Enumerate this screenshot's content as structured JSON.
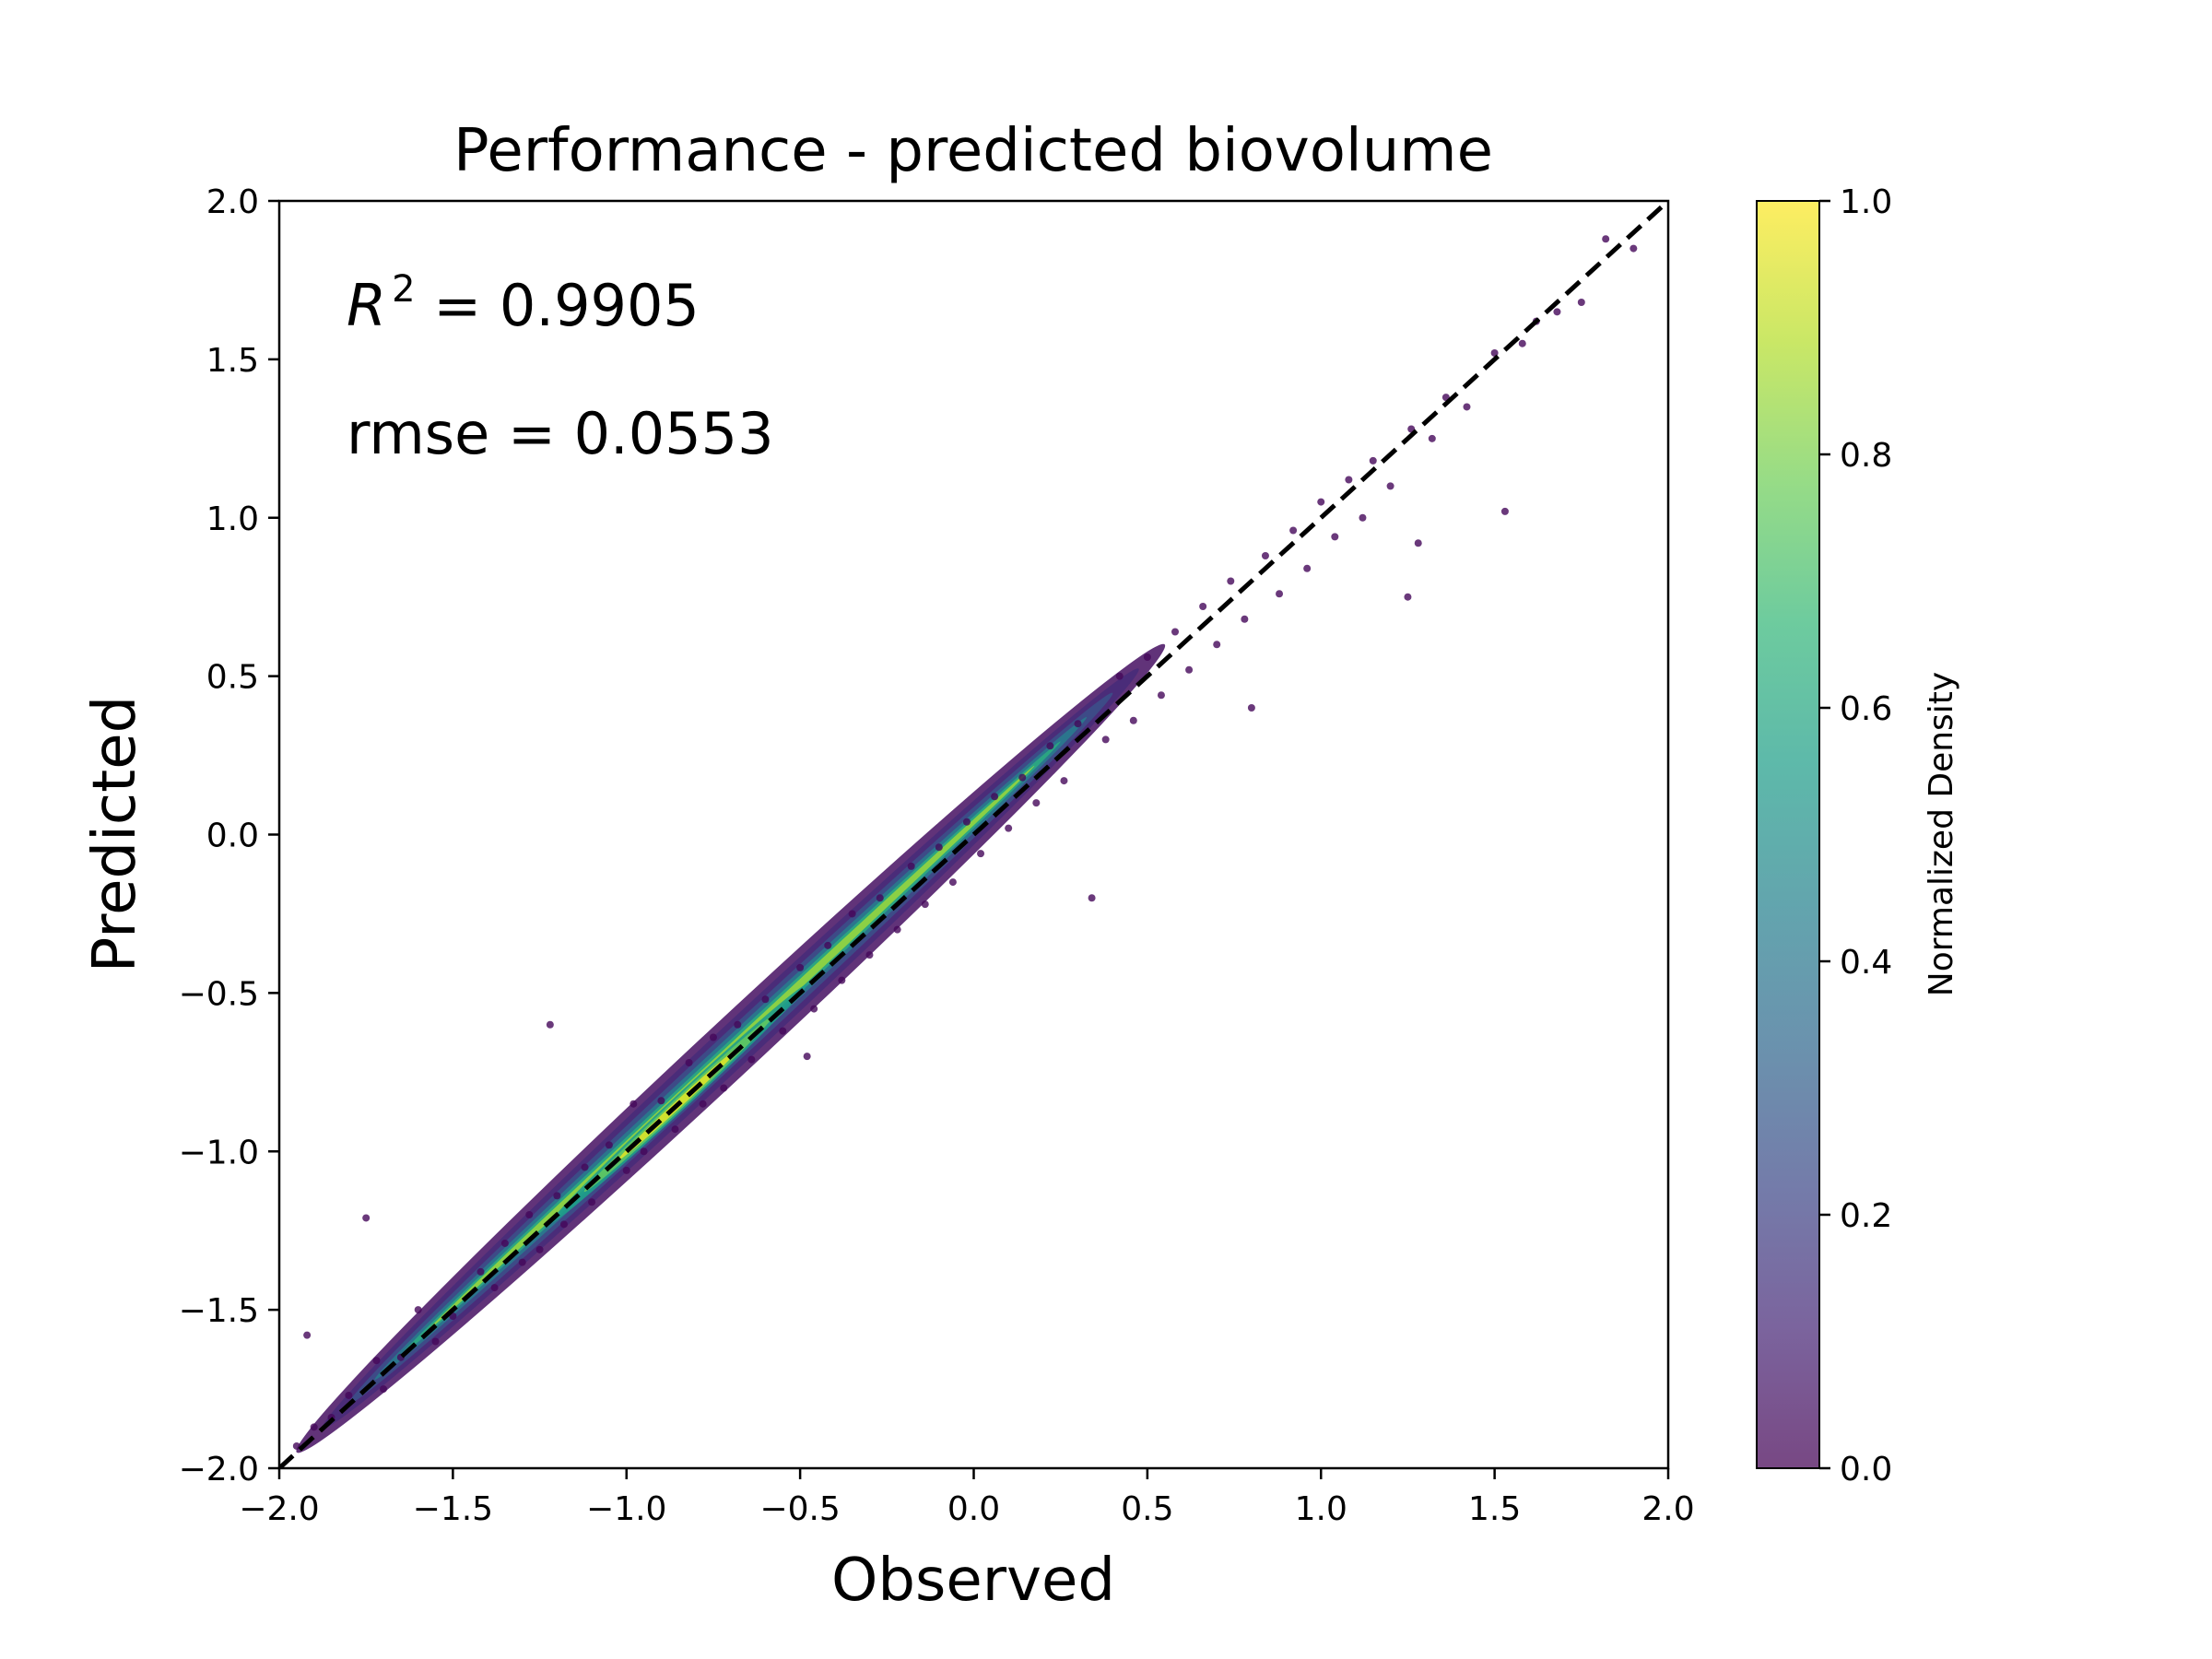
{
  "chart_data": {
    "type": "scatter",
    "title": "Performance - predicted biovolume",
    "xlabel": "Observed",
    "ylabel": "Predicted",
    "xlim": [
      -2.0,
      2.0
    ],
    "ylim": [
      -2.0,
      2.0
    ],
    "xticks": [
      "−2.0",
      "−1.5",
      "−1.0",
      "−0.5",
      "0.0",
      "0.5",
      "1.0",
      "1.5",
      "2.0"
    ],
    "yticks": [
      "−2.0",
      "−1.5",
      "−1.0",
      "−0.5",
      "0.0",
      "0.5",
      "1.0",
      "1.5",
      "2.0"
    ],
    "tick_values": [
      -2.0,
      -1.5,
      -1.0,
      -0.5,
      0.0,
      0.5,
      1.0,
      1.5,
      2.0
    ],
    "grid": false,
    "annotations": {
      "r2_symbol": "R",
      "r2_exponent": "2",
      "r2_value": " = 0.9905",
      "rmse": "rmse = 0.0553"
    },
    "reference_line": {
      "style": "dashed",
      "color": "#000000",
      "from": [
        -2.0,
        -2.0
      ],
      "to": [
        2.0,
        2.0
      ]
    },
    "colorbar": {
      "label": "Normalized Density",
      "range": [
        0.0,
        1.0
      ],
      "ticks": [
        "0.0",
        "0.2",
        "0.4",
        "0.6",
        "0.8",
        "1.0"
      ],
      "tick_values": [
        0.0,
        0.2,
        0.4,
        0.6,
        0.8,
        1.0
      ],
      "colormap": "viridis",
      "colors": [
        "#440154",
        "#482878",
        "#3e4989",
        "#31688e",
        "#26828e",
        "#1f9e89",
        "#35b779",
        "#6ece58",
        "#b5de2b",
        "#fde725"
      ]
    },
    "series": [
      {
        "points": [
          [
            -1.95,
            -1.93
          ],
          [
            -1.9,
            -1.87
          ],
          [
            -1.92,
            -1.58
          ],
          [
            -1.85,
            -1.84
          ],
          [
            -1.8,
            -1.77
          ],
          [
            -1.75,
            -1.21
          ],
          [
            -1.72,
            -1.66
          ],
          [
            -1.7,
            -1.75
          ],
          [
            -1.65,
            -1.65
          ],
          [
            -1.6,
            -1.5
          ],
          [
            -1.55,
            -1.6
          ],
          [
            -1.5,
            -1.52
          ],
          [
            -1.42,
            -1.38
          ],
          [
            -1.38,
            -1.43
          ],
          [
            -1.35,
            -1.29
          ],
          [
            -1.3,
            -1.35
          ],
          [
            -1.28,
            -1.2
          ],
          [
            -1.25,
            -1.31
          ],
          [
            -1.22,
            -0.6
          ],
          [
            -1.2,
            -1.14
          ],
          [
            -1.18,
            -1.23
          ],
          [
            -1.12,
            -1.05
          ],
          [
            -1.1,
            -1.16
          ],
          [
            -1.05,
            -0.98
          ],
          [
            -1.0,
            -1.06
          ],
          [
            -0.98,
            -0.85
          ],
          [
            -0.95,
            -1.0
          ],
          [
            -0.9,
            -0.84
          ],
          [
            -0.86,
            -0.93
          ],
          [
            -0.82,
            -0.72
          ],
          [
            -0.78,
            -0.85
          ],
          [
            -0.75,
            -0.64
          ],
          [
            -0.72,
            -0.8
          ],
          [
            -0.68,
            -0.6
          ],
          [
            -0.64,
            -0.71
          ],
          [
            -0.6,
            -0.52
          ],
          [
            -0.55,
            -0.62
          ],
          [
            -0.5,
            -0.42
          ],
          [
            -0.48,
            -0.7
          ],
          [
            -0.46,
            -0.55
          ],
          [
            -0.42,
            -0.35
          ],
          [
            -0.38,
            -0.46
          ],
          [
            -0.35,
            -0.25
          ],
          [
            -0.3,
            -0.38
          ],
          [
            -0.27,
            -0.2
          ],
          [
            -0.22,
            -0.3
          ],
          [
            -0.18,
            -0.1
          ],
          [
            -0.14,
            -0.22
          ],
          [
            -0.1,
            -0.04
          ],
          [
            -0.06,
            -0.15
          ],
          [
            -0.02,
            0.04
          ],
          [
            0.02,
            -0.06
          ],
          [
            0.06,
            0.12
          ],
          [
            0.1,
            0.02
          ],
          [
            0.14,
            0.18
          ],
          [
            0.18,
            0.1
          ],
          [
            0.22,
            0.28
          ],
          [
            0.26,
            0.17
          ],
          [
            0.3,
            0.35
          ],
          [
            0.34,
            -0.2
          ],
          [
            0.38,
            0.3
          ],
          [
            0.42,
            0.5
          ],
          [
            0.46,
            0.36
          ],
          [
            0.5,
            0.56
          ],
          [
            0.54,
            0.44
          ],
          [
            0.58,
            0.64
          ],
          [
            0.62,
            0.52
          ],
          [
            0.66,
            0.72
          ],
          [
            0.7,
            0.6
          ],
          [
            0.74,
            0.8
          ],
          [
            0.78,
            0.68
          ],
          [
            0.8,
            0.4
          ],
          [
            0.84,
            0.88
          ],
          [
            0.88,
            0.76
          ],
          [
            0.92,
            0.96
          ],
          [
            0.96,
            0.84
          ],
          [
            1.0,
            1.05
          ],
          [
            1.04,
            0.94
          ],
          [
            1.08,
            1.12
          ],
          [
            1.12,
            1.0
          ],
          [
            1.15,
            1.18
          ],
          [
            1.2,
            1.1
          ],
          [
            1.25,
            0.75
          ],
          [
            1.26,
            1.28
          ],
          [
            1.28,
            0.92
          ],
          [
            1.32,
            1.25
          ],
          [
            1.36,
            1.38
          ],
          [
            1.42,
            1.35
          ],
          [
            1.5,
            1.52
          ],
          [
            1.53,
            1.02
          ],
          [
            1.58,
            1.55
          ],
          [
            1.62,
            1.62
          ],
          [
            1.68,
            1.65
          ],
          [
            1.75,
            1.68
          ],
          [
            1.82,
            1.88
          ],
          [
            1.9,
            1.85
          ]
        ]
      }
    ]
  }
}
